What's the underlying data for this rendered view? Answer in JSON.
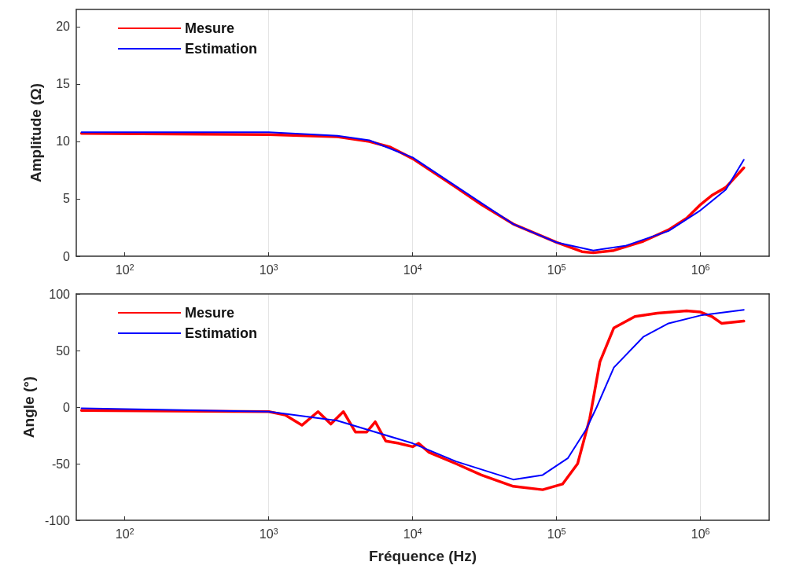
{
  "chart_data": [
    {
      "type": "line",
      "ylabel": "Amplitude (Ω)",
      "log": "x",
      "grid": "x",
      "legend": "top left",
      "marker": "none",
      "line_style": "solid",
      "xlim": [
        46,
        3000000
      ],
      "xticks": [
        {
          "value": 100,
          "label": "10$^{2}$"
        },
        {
          "value": 1000,
          "label": "10$^{3}$"
        },
        {
          "value": 10000,
          "label": "10$^{4}$"
        },
        {
          "value": 100000,
          "label": "10$^{5}$"
        },
        {
          "value": 1000000,
          "label": "10$^{6}$"
        }
      ],
      "ylim": [
        0,
        21.5
      ],
      "yticks": [
        0,
        5,
        10,
        15,
        20
      ],
      "series": [
        {
          "name": "Mesure",
          "color": "#ff0000",
          "x": [
            50,
            1000,
            3000,
            5000,
            7000,
            10000,
            20000,
            30000,
            50000,
            100000,
            150000,
            180000,
            250000,
            400000,
            600000,
            800000,
            1000000,
            1200000,
            1500000,
            2000000
          ],
          "values": [
            10.7,
            10.6,
            10.4,
            10.0,
            9.5,
            8.5,
            6.0,
            4.5,
            2.8,
            1.2,
            0.4,
            0.3,
            0.5,
            1.3,
            2.3,
            3.3,
            4.5,
            5.3,
            6.0,
            7.7
          ]
        },
        {
          "name": "Estimation",
          "color": "#0000ff",
          "x": [
            50,
            1000,
            3000,
            5000,
            10000,
            20000,
            50000,
            100000,
            180000,
            300000,
            600000,
            1000000,
            1500000,
            2000000
          ],
          "values": [
            10.8,
            10.8,
            10.5,
            10.1,
            8.6,
            6.1,
            2.8,
            1.2,
            0.5,
            0.9,
            2.2,
            4.0,
            5.8,
            8.4
          ]
        }
      ]
    },
    {
      "type": "line",
      "xlabel": "Fréquence (Hz)",
      "ylabel": "Angle (°)",
      "log": "x",
      "grid": "x",
      "legend": "top left",
      "marker": "none",
      "line_style": "solid",
      "xlim": [
        46,
        3000000
      ],
      "xticks": [
        {
          "value": 100,
          "label": "10$^{2}$"
        },
        {
          "value": 1000,
          "label": "10$^{3}$"
        },
        {
          "value": 10000,
          "label": "10$^{4}$"
        },
        {
          "value": 100000,
          "label": "10$^{5}$"
        },
        {
          "value": 1000000,
          "label": "10$^{6}$"
        }
      ],
      "ylim": [
        -100,
        100
      ],
      "yticks": [
        -100,
        -50,
        0,
        50,
        100
      ],
      "series": [
        {
          "name": "Mesure",
          "color": "#ff0000",
          "x": [
            50,
            1000,
            1300,
            1700,
            2200,
            2700,
            3300,
            4000,
            4800,
            5500,
            6500,
            8000,
            10000,
            11000,
            13000,
            20000,
            30000,
            50000,
            80000,
            110000,
            140000,
            170000,
            200000,
            250000,
            350000,
            500000,
            800000,
            1000000,
            1200000,
            1400000,
            2000000
          ],
          "values": [
            -3,
            -4,
            -7,
            -16,
            -4,
            -15,
            -4,
            -22,
            -22,
            -13,
            -30,
            -32,
            -35,
            -32,
            -40,
            -50,
            -60,
            -70,
            -73,
            -68,
            -50,
            -10,
            40,
            70,
            80,
            83,
            85,
            84,
            80,
            74,
            76
          ]
        },
        {
          "name": "Estimation",
          "color": "#0000ff",
          "x": [
            50,
            1000,
            3000,
            10000,
            20000,
            50000,
            80000,
            120000,
            160000,
            190000,
            250000,
            400000,
            600000,
            1000000,
            2000000
          ],
          "values": [
            -1,
            -4,
            -12,
            -32,
            -48,
            -64,
            -60,
            -45,
            -20,
            0,
            35,
            62,
            74,
            81,
            86
          ]
        }
      ]
    }
  ]
}
